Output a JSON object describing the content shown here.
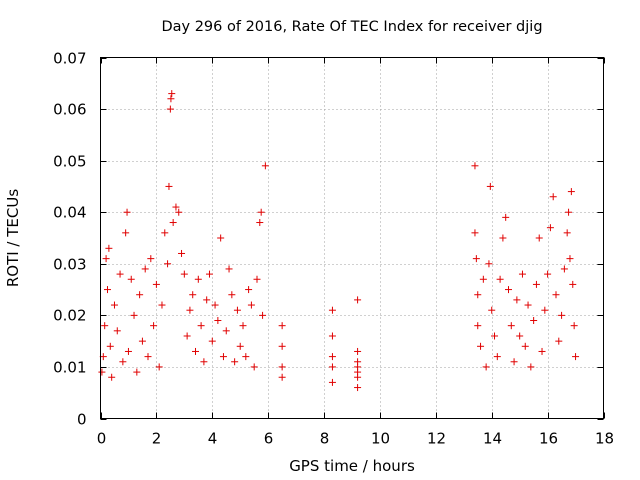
{
  "chart_data": {
    "type": "scatter",
    "title": "Day 296 of 2016, Rate Of TEC Index for receiver djig",
    "xlabel": "GPS time / hours",
    "ylabel": "ROTI / TECUs",
    "xlim": [
      0,
      18
    ],
    "ylim": [
      0,
      0.07
    ],
    "xticks": [
      0,
      2,
      4,
      6,
      8,
      10,
      12,
      14,
      16,
      18
    ],
    "yticks": [
      0,
      0.01,
      0.02,
      0.03,
      0.04,
      0.05,
      0.06,
      0.07
    ],
    "x_tick_labels": [
      "0",
      "2",
      "4",
      "6",
      "8",
      "10",
      "12",
      "14",
      "16",
      "18"
    ],
    "y_tick_labels": [
      "0",
      "0.01",
      "0.02",
      "0.03",
      "0.04",
      "0.05",
      "0.06",
      "0.07"
    ],
    "grid": true,
    "marker": "plus",
    "color": "#e00000",
    "series": [
      {
        "name": "ROTI",
        "points": [
          [
            0.05,
            0.009
          ],
          [
            0.1,
            0.012
          ],
          [
            0.15,
            0.018
          ],
          [
            0.2,
            0.031
          ],
          [
            0.25,
            0.025
          ],
          [
            0.3,
            0.033
          ],
          [
            0.35,
            0.014
          ],
          [
            0.4,
            0.008
          ],
          [
            0.5,
            0.022
          ],
          [
            0.6,
            0.017
          ],
          [
            0.7,
            0.028
          ],
          [
            0.8,
            0.011
          ],
          [
            0.9,
            0.036
          ],
          [
            0.95,
            0.04
          ],
          [
            1.0,
            0.013
          ],
          [
            1.1,
            0.027
          ],
          [
            1.2,
            0.02
          ],
          [
            1.3,
            0.009
          ],
          [
            1.4,
            0.024
          ],
          [
            1.5,
            0.015
          ],
          [
            1.6,
            0.029
          ],
          [
            1.7,
            0.012
          ],
          [
            1.8,
            0.031
          ],
          [
            1.9,
            0.018
          ],
          [
            2.0,
            0.026
          ],
          [
            2.1,
            0.01
          ],
          [
            2.2,
            0.022
          ],
          [
            2.3,
            0.036
          ],
          [
            2.4,
            0.03
          ],
          [
            2.45,
            0.045
          ],
          [
            2.5,
            0.06
          ],
          [
            2.52,
            0.062
          ],
          [
            2.55,
            0.063
          ],
          [
            2.6,
            0.038
          ],
          [
            2.7,
            0.041
          ],
          [
            2.8,
            0.04
          ],
          [
            2.9,
            0.032
          ],
          [
            3.0,
            0.028
          ],
          [
            3.1,
            0.016
          ],
          [
            3.2,
            0.021
          ],
          [
            3.3,
            0.024
          ],
          [
            3.4,
            0.013
          ],
          [
            3.5,
            0.027
          ],
          [
            3.6,
            0.018
          ],
          [
            3.7,
            0.011
          ],
          [
            3.8,
            0.023
          ],
          [
            3.9,
            0.028
          ],
          [
            4.0,
            0.015
          ],
          [
            4.1,
            0.022
          ],
          [
            4.2,
            0.019
          ],
          [
            4.3,
            0.035
          ],
          [
            4.4,
            0.012
          ],
          [
            4.5,
            0.017
          ],
          [
            4.6,
            0.029
          ],
          [
            4.7,
            0.024
          ],
          [
            4.8,
            0.011
          ],
          [
            4.9,
            0.021
          ],
          [
            5.0,
            0.014
          ],
          [
            5.1,
            0.018
          ],
          [
            5.2,
            0.012
          ],
          [
            5.3,
            0.025
          ],
          [
            5.4,
            0.022
          ],
          [
            5.5,
            0.01
          ],
          [
            5.6,
            0.027
          ],
          [
            5.7,
            0.038
          ],
          [
            5.75,
            0.04
          ],
          [
            5.8,
            0.02
          ],
          [
            5.9,
            0.049
          ],
          [
            6.5,
            0.018
          ],
          [
            6.5,
            0.014
          ],
          [
            6.5,
            0.01
          ],
          [
            6.5,
            0.008
          ],
          [
            8.3,
            0.021
          ],
          [
            8.3,
            0.016
          ],
          [
            8.3,
            0.012
          ],
          [
            8.3,
            0.01
          ],
          [
            8.3,
            0.007
          ],
          [
            9.2,
            0.023
          ],
          [
            9.2,
            0.013
          ],
          [
            9.2,
            0.011
          ],
          [
            9.2,
            0.01
          ],
          [
            9.2,
            0.009
          ],
          [
            9.2,
            0.008
          ],
          [
            9.2,
            0.006
          ],
          [
            13.4,
            0.049
          ],
          [
            13.4,
            0.036
          ],
          [
            13.45,
            0.031
          ],
          [
            13.5,
            0.024
          ],
          [
            13.5,
            0.018
          ],
          [
            13.6,
            0.014
          ],
          [
            13.7,
            0.027
          ],
          [
            13.8,
            0.01
          ],
          [
            13.9,
            0.03
          ],
          [
            13.95,
            0.045
          ],
          [
            14.0,
            0.021
          ],
          [
            14.1,
            0.016
          ],
          [
            14.2,
            0.012
          ],
          [
            14.3,
            0.027
          ],
          [
            14.4,
            0.035
          ],
          [
            14.5,
            0.039
          ],
          [
            14.6,
            0.025
          ],
          [
            14.7,
            0.018
          ],
          [
            14.8,
            0.011
          ],
          [
            14.9,
            0.023
          ],
          [
            15.0,
            0.016
          ],
          [
            15.1,
            0.028
          ],
          [
            15.2,
            0.014
          ],
          [
            15.3,
            0.022
          ],
          [
            15.4,
            0.01
          ],
          [
            15.5,
            0.019
          ],
          [
            15.6,
            0.026
          ],
          [
            15.7,
            0.035
          ],
          [
            15.8,
            0.013
          ],
          [
            15.9,
            0.021
          ],
          [
            16.0,
            0.028
          ],
          [
            16.1,
            0.037
          ],
          [
            16.2,
            0.043
          ],
          [
            16.3,
            0.024
          ],
          [
            16.4,
            0.015
          ],
          [
            16.5,
            0.02
          ],
          [
            16.6,
            0.029
          ],
          [
            16.7,
            0.036
          ],
          [
            16.75,
            0.04
          ],
          [
            16.8,
            0.031
          ],
          [
            16.85,
            0.044
          ],
          [
            16.9,
            0.026
          ],
          [
            16.95,
            0.018
          ],
          [
            17.0,
            0.012
          ]
        ]
      }
    ]
  }
}
